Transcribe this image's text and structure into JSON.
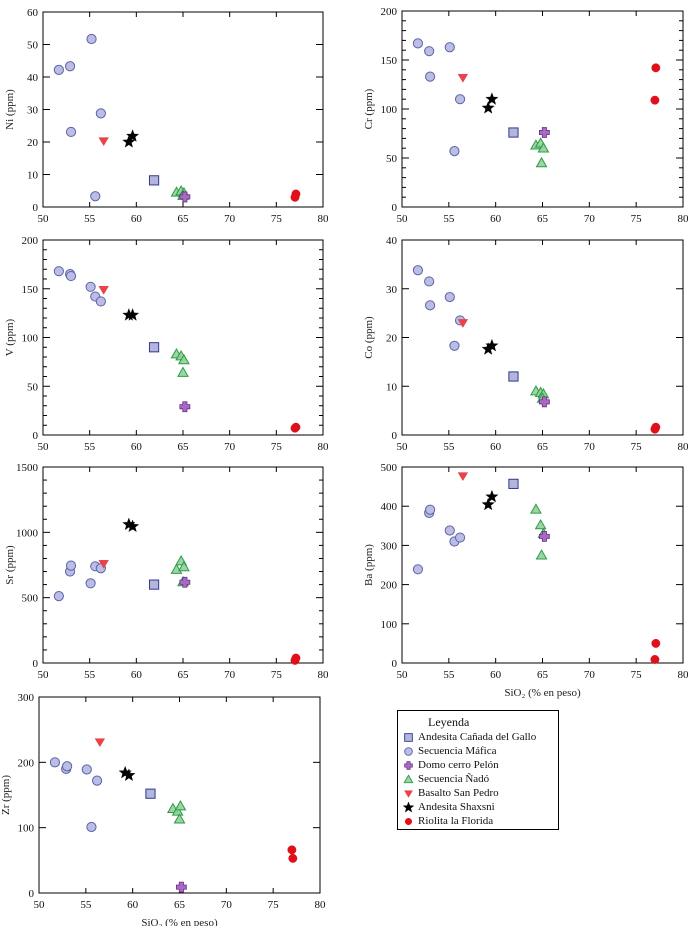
{
  "legend": {
    "title": "Leyenda",
    "items": [
      {
        "key": "andesita_canada",
        "label": "Andesita Cañada del Gallo",
        "marker": "square",
        "fill": "#b4b4dc",
        "stroke": "#2d3c8c"
      },
      {
        "key": "secuencia_mafica",
        "label": "Secuencia Máfica",
        "marker": "circle",
        "fill": "#bcbce4",
        "stroke": "#5a64a8"
      },
      {
        "key": "domo_pelon",
        "label": "Domo cerro Pelón",
        "marker": "plus",
        "fill": "#a66bbf",
        "stroke": "#6a2d8a"
      },
      {
        "key": "secuencia_nado",
        "label": "Secuencia Ñadó",
        "marker": "triangle-up",
        "fill": "#8fd29a",
        "stroke": "#2e9a46"
      },
      {
        "key": "basalto_sanpedro",
        "label": "Basalto San Pedro",
        "marker": "triangle-down",
        "fill": "#e8434a",
        "stroke": "#e8434a"
      },
      {
        "key": "andesita_shaxsni",
        "label": "Andesita Shaxsni",
        "marker": "star",
        "fill": "#000000",
        "stroke": "#000000"
      },
      {
        "key": "riolita_florida",
        "label": "Riolita la Florida",
        "marker": "dot",
        "fill": "#e0101a",
        "stroke": "#e0101a"
      }
    ]
  },
  "chart_data": [
    {
      "type": "scatter",
      "id": "ni",
      "title": "",
      "xlabel": "",
      "ylabel": "Ni (ppm)",
      "xlim": [
        50,
        80
      ],
      "ylim": [
        0,
        60
      ],
      "xticks": [
        50,
        55,
        60,
        65,
        70,
        75,
        80
      ],
      "yticks": [
        0,
        10,
        20,
        30,
        40,
        50,
        60
      ],
      "yminor": 0,
      "series": [
        {
          "name": "Secuencia Máfica",
          "points": [
            [
              51.7,
              42.2
            ],
            [
              52.9,
              43.3
            ],
            [
              53.0,
              23.1
            ],
            [
              55.2,
              51.7
            ],
            [
              55.6,
              3.3
            ],
            [
              56.2,
              28.8
            ]
          ]
        },
        {
          "name": "Basalto San Pedro",
          "points": [
            [
              56.5,
              20.3
            ]
          ]
        },
        {
          "name": "Andesita Shaxsni",
          "points": [
            [
              59.2,
              20.0
            ],
            [
              59.6,
              21.8
            ]
          ]
        },
        {
          "name": "Andesita Cañada del Gallo",
          "points": [
            [
              61.9,
              8.2
            ]
          ]
        },
        {
          "name": "Secuencia Ñadó",
          "points": [
            [
              64.3,
              4.5
            ],
            [
              64.8,
              4.9
            ],
            [
              65.1,
              4.3
            ],
            [
              65.0,
              3.5
            ]
          ]
        },
        {
          "name": "Domo cerro Pelón",
          "points": [
            [
              65.2,
              3.1
            ]
          ]
        },
        {
          "name": "Riolita la Florida",
          "points": [
            [
              77.0,
              3.0
            ],
            [
              77.1,
              4.0
            ]
          ]
        }
      ]
    },
    {
      "type": "scatter",
      "id": "cr",
      "title": "",
      "xlabel": "",
      "ylabel": "Cr (ppm)",
      "xlim": [
        50,
        80
      ],
      "ylim": [
        0,
        200
      ],
      "xticks": [
        50,
        55,
        60,
        65,
        70,
        75,
        80
      ],
      "yticks": [
        0,
        50,
        100,
        150,
        200
      ],
      "yminor": 10,
      "series": [
        {
          "name": "Secuencia Máfica",
          "points": [
            [
              51.7,
              167
            ],
            [
              52.9,
              159
            ],
            [
              53.0,
              133
            ],
            [
              55.1,
              163
            ],
            [
              55.6,
              57
            ],
            [
              56.2,
              110
            ]
          ]
        },
        {
          "name": "Basalto San Pedro",
          "points": [
            [
              56.5,
              132
            ]
          ]
        },
        {
          "name": "Andesita Shaxsni",
          "points": [
            [
              59.2,
              101
            ],
            [
              59.6,
              110
            ]
          ]
        },
        {
          "name": "Andesita Cañada del Gallo",
          "points": [
            [
              61.9,
              76
            ]
          ]
        },
        {
          "name": "Secuencia Ñadó",
          "points": [
            [
              64.3,
              63
            ],
            [
              64.8,
              65
            ],
            [
              65.1,
              60
            ],
            [
              64.9,
              45
            ]
          ]
        },
        {
          "name": "Domo cerro Pelón",
          "points": [
            [
              65.2,
              76
            ]
          ]
        },
        {
          "name": "Riolita la Florida",
          "points": [
            [
              77.0,
              109
            ],
            [
              77.1,
              142
            ]
          ]
        }
      ]
    },
    {
      "type": "scatter",
      "id": "v",
      "title": "",
      "xlabel": "",
      "ylabel": "V (ppm)",
      "xlim": [
        50,
        80
      ],
      "ylim": [
        0,
        200
      ],
      "xticks": [
        50,
        55,
        60,
        65,
        70,
        75,
        80
      ],
      "yticks": [
        0,
        50,
        100,
        150,
        200
      ],
      "yminor": 10,
      "series": [
        {
          "name": "Secuencia Máfica",
          "points": [
            [
              51.7,
              168
            ],
            [
              52.9,
              165
            ],
            [
              53.0,
              163
            ],
            [
              55.1,
              152
            ],
            [
              55.6,
              142
            ],
            [
              56.2,
              137
            ]
          ]
        },
        {
          "name": "Basalto San Pedro",
          "points": [
            [
              56.5,
              149
            ]
          ]
        },
        {
          "name": "Andesita Shaxsni",
          "points": [
            [
              59.2,
              123
            ],
            [
              59.6,
              123
            ]
          ]
        },
        {
          "name": "Andesita Cañada del Gallo",
          "points": [
            [
              61.9,
              90
            ]
          ]
        },
        {
          "name": "Secuencia Ñadó",
          "points": [
            [
              64.3,
              83
            ],
            [
              64.8,
              81
            ],
            [
              65.1,
              77
            ],
            [
              65.0,
              64
            ]
          ]
        },
        {
          "name": "Domo cerro Pelón",
          "points": [
            [
              65.2,
              29
            ]
          ]
        },
        {
          "name": "Riolita la Florida",
          "points": [
            [
              77.0,
              7
            ],
            [
              77.1,
              8
            ]
          ]
        }
      ]
    },
    {
      "type": "scatter",
      "id": "co",
      "title": "",
      "xlabel": "",
      "ylabel": "Co (ppm)",
      "xlim": [
        50,
        80
      ],
      "ylim": [
        0,
        40
      ],
      "xticks": [
        50,
        55,
        60,
        65,
        70,
        75,
        80
      ],
      "yticks": [
        0,
        10,
        20,
        30,
        40
      ],
      "yminor": 0,
      "series": [
        {
          "name": "Secuencia Máfica",
          "points": [
            [
              51.7,
              33.8
            ],
            [
              52.9,
              31.5
            ],
            [
              53.0,
              26.6
            ],
            [
              55.1,
              28.3
            ],
            [
              55.6,
              18.3
            ],
            [
              56.2,
              23.5
            ]
          ]
        },
        {
          "name": "Basalto San Pedro",
          "points": [
            [
              56.5,
              23.0
            ]
          ]
        },
        {
          "name": "Andesita Shaxsni",
          "points": [
            [
              59.2,
              17.6
            ],
            [
              59.6,
              18.3
            ]
          ]
        },
        {
          "name": "Andesita Cañada del Gallo",
          "points": [
            [
              61.9,
              12.0
            ]
          ]
        },
        {
          "name": "Secuencia Ñadó",
          "points": [
            [
              64.3,
              9.0
            ],
            [
              64.8,
              8.7
            ],
            [
              65.1,
              8.4
            ],
            [
              65.0,
              7.5
            ]
          ]
        },
        {
          "name": "Domo cerro Pelón",
          "points": [
            [
              65.2,
              6.8
            ]
          ]
        },
        {
          "name": "Riolita la Florida",
          "points": [
            [
              77.0,
              1.2
            ],
            [
              77.1,
              1.6
            ]
          ]
        }
      ]
    },
    {
      "type": "scatter",
      "id": "sr",
      "title": "",
      "xlabel": "",
      "ylabel": "Sr (ppm)",
      "xlim": [
        50,
        80
      ],
      "ylim": [
        0,
        1500
      ],
      "xticks": [
        50,
        55,
        60,
        65,
        70,
        75,
        80
      ],
      "yticks": [
        0,
        500,
        1000,
        1500
      ],
      "yminor": 100,
      "series": [
        {
          "name": "Secuencia Máfica",
          "points": [
            [
              51.7,
              512
            ],
            [
              52.9,
              700
            ],
            [
              53.0,
              745
            ],
            [
              55.1,
              610
            ],
            [
              55.6,
              740
            ],
            [
              56.2,
              725
            ]
          ]
        },
        {
          "name": "Basalto San Pedro",
          "points": [
            [
              56.5,
              760
            ]
          ]
        },
        {
          "name": "Andesita Shaxsni",
          "points": [
            [
              59.2,
              1060
            ],
            [
              59.6,
              1045
            ]
          ]
        },
        {
          "name": "Andesita Cañada del Gallo",
          "points": [
            [
              61.9,
              600
            ]
          ]
        },
        {
          "name": "Secuencia Ñadó",
          "points": [
            [
              64.3,
              715
            ],
            [
              64.8,
              780
            ],
            [
              65.1,
              735
            ],
            [
              65.0,
              620
            ]
          ]
        },
        {
          "name": "Domo cerro Pelón",
          "points": [
            [
              65.2,
              618
            ]
          ]
        },
        {
          "name": "Riolita la Florida",
          "points": [
            [
              77.0,
              20
            ],
            [
              77.1,
              38
            ]
          ]
        }
      ]
    },
    {
      "type": "scatter",
      "id": "ba",
      "title": "",
      "xlabel": "SiO₂ (% en peso)",
      "ylabel": "Ba (ppm)",
      "xlim": [
        50,
        80
      ],
      "ylim": [
        0,
        500
      ],
      "xticks": [
        50,
        55,
        60,
        65,
        70,
        75,
        80
      ],
      "yticks": [
        0,
        100,
        200,
        300,
        400,
        500
      ],
      "yminor": 0,
      "series": [
        {
          "name": "Secuencia Máfica",
          "points": [
            [
              51.7,
              239
            ],
            [
              52.9,
              383
            ],
            [
              53.0,
              391
            ],
            [
              55.1,
              338
            ],
            [
              55.6,
              310
            ],
            [
              56.2,
              320
            ]
          ]
        },
        {
          "name": "Basalto San Pedro",
          "points": [
            [
              56.5,
              477
            ]
          ]
        },
        {
          "name": "Andesita Shaxsni",
          "points": [
            [
              59.2,
              404
            ],
            [
              59.6,
              424
            ]
          ]
        },
        {
          "name": "Andesita Cañada del Gallo",
          "points": [
            [
              61.9,
              457
            ]
          ]
        },
        {
          "name": "Secuencia Ñadó",
          "points": [
            [
              64.3,
              392
            ],
            [
              64.8,
              352
            ],
            [
              65.1,
              330
            ],
            [
              64.9,
              275
            ]
          ]
        },
        {
          "name": "Domo cerro Pelón",
          "points": [
            [
              65.2,
              323
            ]
          ]
        },
        {
          "name": "Riolita la Florida",
          "points": [
            [
              77.0,
              9
            ],
            [
              77.1,
              50
            ]
          ]
        }
      ]
    },
    {
      "type": "scatter",
      "id": "zr",
      "title": "",
      "xlabel": "SiO₂ (% en peso)",
      "ylabel": "Zr (ppm)",
      "xlim": [
        50,
        80
      ],
      "ylim": [
        0,
        300
      ],
      "xticks": [
        50,
        55,
        60,
        65,
        70,
        75,
        80
      ],
      "yticks": [
        0,
        100,
        200,
        300
      ],
      "yminor": 0,
      "series": [
        {
          "name": "Secuencia Máfica",
          "points": [
            [
              51.7,
              200
            ],
            [
              52.9,
              190
            ],
            [
              53.0,
              194
            ],
            [
              55.1,
              189
            ],
            [
              55.6,
              101
            ],
            [
              56.2,
              172
            ]
          ]
        },
        {
          "name": "Basalto San Pedro",
          "points": [
            [
              56.5,
              231
            ]
          ]
        },
        {
          "name": "Andesita Shaxsni",
          "points": [
            [
              59.2,
              184
            ],
            [
              59.6,
              180
            ]
          ]
        },
        {
          "name": "Andesita Cañada del Gallo",
          "points": [
            [
              61.9,
              152
            ]
          ]
        },
        {
          "name": "Secuencia Ñadó",
          "points": [
            [
              64.3,
              129
            ],
            [
              64.8,
              125
            ],
            [
              65.1,
              133
            ],
            [
              65.0,
              113
            ]
          ]
        },
        {
          "name": "Domo cerro Pelón",
          "points": [
            [
              65.2,
              9
            ]
          ]
        },
        {
          "name": "Riolita la Florida",
          "points": [
            [
              77.0,
              66
            ],
            [
              77.1,
              53
            ]
          ]
        }
      ]
    }
  ]
}
